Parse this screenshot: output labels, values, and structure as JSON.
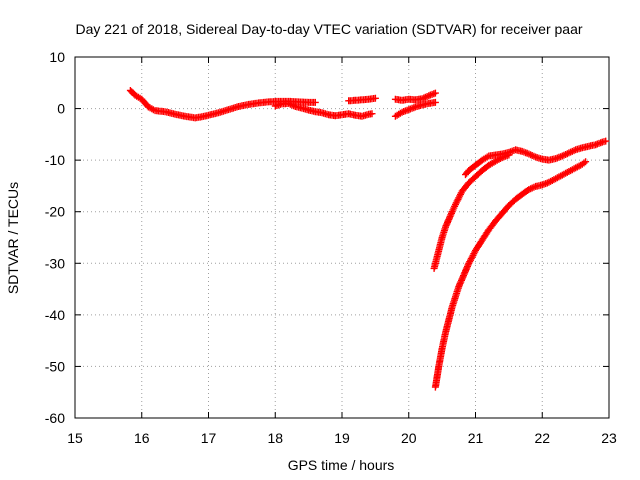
{
  "chart_data": {
    "type": "scatter",
    "title": "Day 221 of 2018, Sidereal Day-to-day VTEC variation (SDTVAR) for receiver paar",
    "xlabel": "GPS time / hours",
    "ylabel": "SDTVAR / TECUs",
    "xlim": [
      15,
      23
    ],
    "ylim": [
      -60,
      10
    ],
    "xticks": [
      "15",
      "16",
      "17",
      "18",
      "19",
      "20",
      "21",
      "22",
      "23"
    ],
    "yticks": [
      "10",
      "0",
      "-10",
      "-20",
      "-30",
      "-40",
      "-50",
      "-60"
    ],
    "grid": true,
    "marker": "plus",
    "color": "#ff0000",
    "series": [
      {
        "name": "segment-1",
        "x": [
          15.83,
          15.9,
          16.0,
          16.1,
          16.2,
          16.35,
          16.5,
          16.65,
          16.8,
          16.9,
          17.0,
          17.15,
          17.3,
          17.45,
          17.6,
          17.75,
          17.9,
          18.05,
          18.2,
          18.35,
          18.5,
          18.6
        ],
        "y": [
          3.5,
          2.6,
          1.8,
          0.3,
          -0.4,
          -0.6,
          -1.1,
          -1.5,
          -1.8,
          -1.6,
          -1.3,
          -0.8,
          -0.2,
          0.4,
          0.8,
          1.1,
          1.3,
          1.4,
          1.4,
          1.3,
          1.2,
          1.2
        ]
      },
      {
        "name": "segment-2",
        "x": [
          18.0,
          18.1,
          18.2,
          18.3,
          18.4,
          18.5,
          18.6,
          18.7,
          18.8,
          18.9,
          19.0,
          19.1,
          19.2,
          19.3,
          19.4,
          19.45
        ],
        "y": [
          0.5,
          0.9,
          1.0,
          0.4,
          0.1,
          -0.3,
          -0.6,
          -0.8,
          -1.2,
          -1.4,
          -1.2,
          -1.0,
          -1.3,
          -1.5,
          -1.1,
          -1.0
        ]
      },
      {
        "name": "segment-3",
        "x": [
          19.1,
          19.2,
          19.3,
          19.4,
          19.5
        ],
        "y": [
          1.5,
          1.6,
          1.7,
          1.8,
          2.0
        ]
      },
      {
        "name": "segment-4",
        "x": [
          19.8,
          19.9,
          20.0,
          20.1,
          20.2,
          20.3,
          20.4
        ],
        "y": [
          1.8,
          1.6,
          1.8,
          1.7,
          1.9,
          2.5,
          3.0
        ]
      },
      {
        "name": "segment-5",
        "x": [
          19.8,
          19.9,
          20.0,
          20.1,
          20.2,
          20.3,
          20.4
        ],
        "y": [
          -1.5,
          -0.7,
          -0.2,
          0.3,
          0.7,
          1.0,
          1.2
        ]
      },
      {
        "name": "segment-6",
        "x": [
          20.38,
          20.42,
          20.46,
          20.5,
          20.55,
          20.6,
          20.65,
          20.7,
          20.75,
          20.8,
          20.85,
          20.9,
          21.0,
          21.1,
          21.2,
          21.3,
          21.4,
          21.5
        ],
        "y": [
          -31.0,
          -29.0,
          -27.0,
          -25.0,
          -23.0,
          -21.5,
          -20.0,
          -18.6,
          -17.3,
          -16.0,
          -15.2,
          -14.4,
          -13.2,
          -12.0,
          -11.0,
          -10.2,
          -9.5,
          -9.0
        ]
      },
      {
        "name": "segment-7",
        "x": [
          20.85,
          20.9,
          21.0,
          21.1,
          21.2,
          21.3,
          21.4,
          21.5,
          21.6,
          21.7,
          21.8,
          21.9,
          22.0,
          22.1,
          22.2,
          22.3,
          22.4,
          22.5,
          22.6,
          22.7,
          22.8,
          22.9,
          22.95
        ],
        "y": [
          -12.8,
          -12.0,
          -11.0,
          -10.0,
          -9.2,
          -9.0,
          -8.8,
          -8.5,
          -8.0,
          -8.3,
          -8.8,
          -9.4,
          -9.8,
          -10.0,
          -9.7,
          -9.2,
          -8.6,
          -8.0,
          -7.6,
          -7.3,
          -7.0,
          -6.5,
          -6.3
        ]
      },
      {
        "name": "segment-8",
        "x": [
          20.4,
          20.45,
          20.5,
          20.55,
          20.6,
          20.65,
          20.7,
          20.75,
          20.8,
          20.85,
          20.9,
          20.95,
          21.0,
          21.1,
          21.2,
          21.3,
          21.4,
          21.5,
          21.6,
          21.7,
          21.8,
          21.9,
          22.0,
          22.1,
          22.2,
          22.3,
          22.4,
          22.5,
          22.6,
          22.65
        ],
        "y": [
          -54.0,
          -50.0,
          -46.5,
          -43.5,
          -41.0,
          -38.5,
          -36.5,
          -34.5,
          -33.0,
          -31.5,
          -30.0,
          -28.8,
          -27.5,
          -25.5,
          -23.5,
          -21.8,
          -20.3,
          -18.8,
          -17.6,
          -16.6,
          -15.7,
          -15.1,
          -14.8,
          -14.3,
          -13.6,
          -12.9,
          -12.2,
          -11.5,
          -10.8,
          -10.3
        ]
      }
    ]
  }
}
